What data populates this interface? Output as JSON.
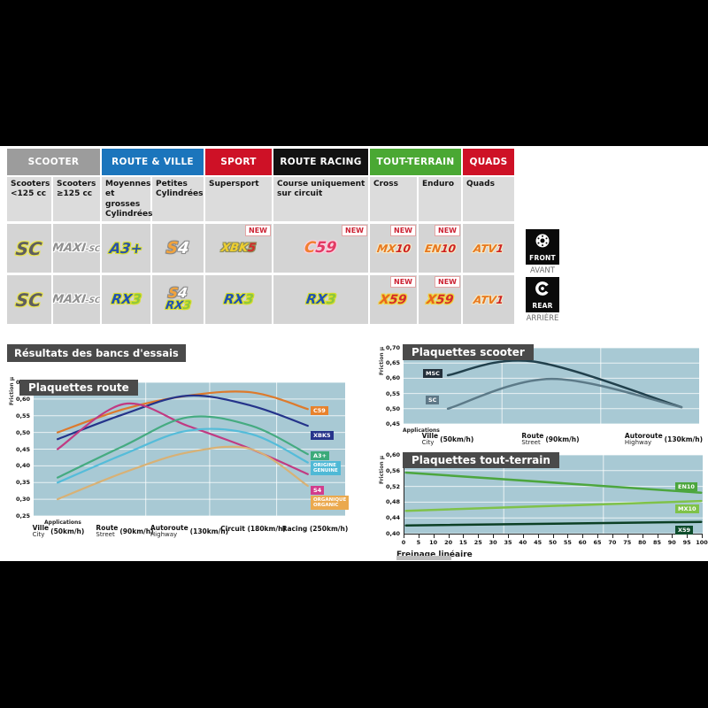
{
  "results_title": "Résultats des bancs d'essais",
  "new_label": "NEW",
  "side_badges": {
    "front": {
      "label": "FRONT",
      "sub": "AVANT"
    },
    "rear": {
      "label": "REAR",
      "sub": "ARRIÈRE"
    }
  },
  "table": {
    "groups": [
      {
        "label": "SCOOTER",
        "color": "#9C9C9C",
        "span": 2
      },
      {
        "label": "ROUTE & VILLE",
        "color": "#1B75BC",
        "span": 2
      },
      {
        "label": "SPORT",
        "color": "#CE1126",
        "span": 1
      },
      {
        "label": "ROUTE RACING",
        "color": "#121212",
        "span": 1
      },
      {
        "label": "TOUT-TERRAIN",
        "color": "#4AA833",
        "span": 2
      },
      {
        "label": "QUADS",
        "color": "#CE1126",
        "span": 1
      }
    ],
    "columns": [
      "Scooters <125 cc",
      "Scooters ≥125 cc",
      "Moyennes et grosses Cylindrées",
      "Petites Cylindrées",
      "Supersport",
      "Course uniquement sur circuit",
      "Cross",
      "Enduro",
      "Quads"
    ],
    "logo_defs": {
      "sc": {
        "parts": [
          {
            "t": "SC",
            "c": "#5F5F5F"
          }
        ],
        "glow": "#E9E44B",
        "fs": 20
      },
      "maxisc": {
        "parts": [
          {
            "t": "MAXI",
            "c": "#8F8F8F"
          },
          {
            "t": "-SC",
            "c": "#8F8F8F",
            "fs": 9
          }
        ],
        "glow": "#FFFFFF",
        "fs": 13
      },
      "a3plus": {
        "parts": [
          {
            "t": "A3+",
            "c": "#2B52A8"
          }
        ],
        "glow": "#D6DE25",
        "fs": 16
      },
      "s4": {
        "parts": [
          {
            "t": "S",
            "c": "#F2A33C"
          },
          {
            "t": "4",
            "c": "#FFFFFF"
          }
        ],
        "glow": "#8A8A8A",
        "fs": 18
      },
      "xbk5": {
        "parts": [
          {
            "t": "XBK",
            "c": "#EFCF2E"
          },
          {
            "t": "5",
            "c": "#D42B2B"
          }
        ],
        "glow": "#8C8C5A",
        "fs": 13
      },
      "c59": {
        "parts": [
          {
            "t": "C",
            "c": "#F08030"
          },
          {
            "t": "59",
            "c": "#E23A64"
          }
        ],
        "glow": "#FFD0E0",
        "fs": 17
      },
      "rx3": {
        "parts": [
          {
            "t": "RX",
            "c": "#1E4FB4"
          },
          {
            "t": "3",
            "c": "#8CC63F"
          }
        ],
        "glow": "#D6DE25",
        "fs": 15
      },
      "mx10": {
        "parts": [
          {
            "t": "MX",
            "c": "#E8781E"
          },
          {
            "t": "10",
            "c": "#CE2121"
          }
        ],
        "glow": "#F5E9C8",
        "fs": 12
      },
      "en10": {
        "parts": [
          {
            "t": "EN",
            "c": "#E8781E"
          },
          {
            "t": "10",
            "c": "#CE2121"
          }
        ],
        "glow": "#F5E9C8",
        "fs": 12
      },
      "atv1": {
        "parts": [
          {
            "t": "ATV",
            "c": "#E8781E"
          },
          {
            "t": "1",
            "c": "#CE2121"
          }
        ],
        "glow": "#F5E9C8",
        "fs": 12
      },
      "x59": {
        "parts": [
          {
            "t": "X",
            "c": "#E8641E"
          },
          {
            "t": "59",
            "c": "#D42B2B"
          }
        ],
        "glow": "#EFD43A",
        "fs": 14
      }
    },
    "front_cells": [
      {
        "logos": [
          "sc"
        ]
      },
      {
        "logos": [
          "maxisc"
        ]
      },
      {
        "logos": [
          "a3plus"
        ]
      },
      {
        "logos": [
          "s4"
        ]
      },
      {
        "logos": [
          "xbk5"
        ],
        "new": true
      },
      {
        "logos": [
          "c59"
        ],
        "new": true
      },
      {
        "logos": [
          "mx10"
        ],
        "new": true
      },
      {
        "logos": [
          "en10"
        ],
        "new": true
      },
      {
        "logos": [
          "atv1"
        ]
      }
    ],
    "rear_cells": [
      {
        "logos": [
          "sc"
        ]
      },
      {
        "logos": [
          "maxisc"
        ]
      },
      {
        "logos": [
          "rx3"
        ]
      },
      {
        "logos": [
          "s4",
          "rx3"
        ]
      },
      {
        "logos": [
          "rx3"
        ]
      },
      {
        "logos": [
          "rx3"
        ]
      },
      {
        "logos": [
          "x59"
        ],
        "new": true
      },
      {
        "logos": [
          "x59"
        ],
        "new": true
      },
      {
        "logos": [
          "atv1"
        ]
      }
    ]
  },
  "chart_data": [
    {
      "id": "route",
      "type": "line",
      "title": "Plaquettes route",
      "ylabel": "Friction μ",
      "xlabel_note": "Applications",
      "ylim": [
        0.25,
        0.65
      ],
      "yticks": [
        "0,65",
        "0,60",
        "0,55",
        "0,50",
        "0,45",
        "0,40",
        "0,35",
        "0,30",
        "0,25"
      ],
      "grid": true,
      "legend_position": "right",
      "categories": [
        {
          "fr": "Ville",
          "en": "City",
          "speed": "(50km/h)"
        },
        {
          "fr": "Route",
          "en": "Street",
          "speed": "(90km/h)"
        },
        {
          "fr": "Autoroute",
          "en": "Highway",
          "speed": "(130km/h)"
        },
        {
          "fr": "Circuit (180km/h)"
        },
        {
          "fr": "Racing (250km/h)"
        }
      ],
      "series": [
        {
          "name": "C59",
          "color": "#DD7A2C",
          "label_bg": "#E8822C",
          "values": [
            0.5,
            0.57,
            0.61,
            0.62,
            0.57
          ]
        },
        {
          "name": "XBK5",
          "color": "#24338A",
          "label_bg": "#27348B",
          "values": [
            0.48,
            0.555,
            0.61,
            0.58,
            0.52
          ]
        },
        {
          "name": "S4",
          "color": "#C13A82",
          "label_bg": "#D23C8C",
          "values": [
            0.45,
            0.585,
            0.52,
            0.45,
            0.375
          ]
        },
        {
          "name": "A3+",
          "color": "#45AB81",
          "label_bg": "#3BAA7A",
          "values": [
            0.365,
            0.46,
            0.545,
            0.52,
            0.435
          ]
        },
        {
          "name": "ORIGINE",
          "name2": "GENUINE",
          "color": "#55BCD9",
          "label_bg": "#4FB9D6",
          "values": [
            0.35,
            0.435,
            0.505,
            0.495,
            0.41
          ]
        },
        {
          "name": "ORGANIQUE",
          "name2": "ORGANIC",
          "color": "#D8B175",
          "label_bg": "#EBA94E",
          "values": [
            0.3,
            0.38,
            0.44,
            0.45,
            0.34
          ]
        }
      ]
    },
    {
      "id": "scooter",
      "type": "line",
      "title": "Plaquettes scooter",
      "ylabel": "Friction μ",
      "xlabel_note": "Applications",
      "ylim": [
        0.45,
        0.7
      ],
      "yticks": [
        "0,70",
        "0,65",
        "0,60",
        "0,55",
        "0,50",
        "0,45"
      ],
      "grid": true,
      "categories": [
        {
          "fr": "Ville",
          "en": "City",
          "speed": "(50km/h)"
        },
        {
          "fr": "Route",
          "en": "Street",
          "speed": "(90km/h)"
        },
        {
          "fr": "Autoroute",
          "en": "Highway",
          "speed": "(130km/h)"
        }
      ],
      "series": [
        {
          "name": "MSC",
          "color": "#21404C",
          "label_bg": "#232F3A",
          "values": [
            0.61,
            0.655,
            0.505
          ]
        },
        {
          "name": "SC",
          "color": "#5C7A88",
          "label_bg": "#5E7887",
          "values": [
            0.5,
            0.598,
            0.505
          ]
        }
      ]
    },
    {
      "id": "tout_terrain",
      "type": "line",
      "title": "Plaquettes tout-terrain",
      "ylabel": "Friction μ",
      "xlabel": "Freinage linéaire",
      "ylim": [
        0.4,
        0.6
      ],
      "yticks": [
        "0,60",
        "0,56",
        "0,52",
        "0,48",
        "0,44",
        "0,40"
      ],
      "xticks": [
        "0",
        "5",
        "10",
        "20",
        "15",
        "25",
        "30",
        "35",
        "40",
        "45",
        "50",
        "55",
        "60",
        "65",
        "70",
        "75",
        "80",
        "85",
        "90",
        "95",
        "100"
      ],
      "grid": true,
      "series": [
        {
          "name": "EN10",
          "color": "#4CA63E",
          "label_bg": "#4CA63E",
          "values": [
            0.555,
            0.504
          ]
        },
        {
          "name": "MX10",
          "color": "#7FC249",
          "label_bg": "#7FC249",
          "values": [
            0.458,
            0.483
          ]
        },
        {
          "name": "X59",
          "color": "#0C3F24",
          "label_bg": "#0E4D2C",
          "values": [
            0.421,
            0.43
          ]
        }
      ]
    }
  ]
}
